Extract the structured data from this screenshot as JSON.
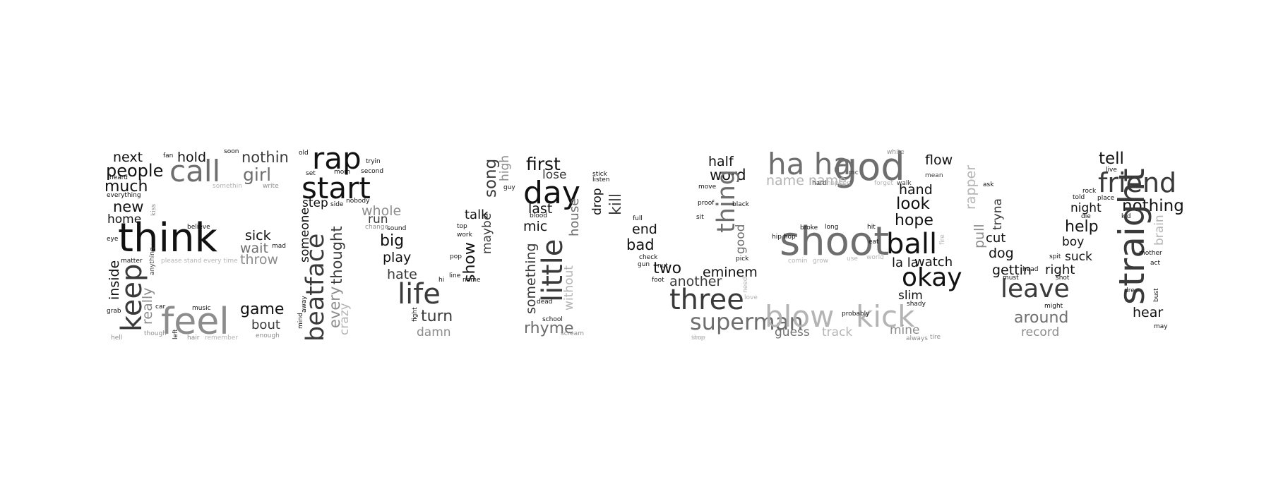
{
  "palette": {
    "black": "#111111",
    "dark": "#3a3a3a",
    "mid": "#6e6e6e",
    "gray": "#8c8c8c",
    "light": "#b4b4b4",
    "pale": "#cfcfcf"
  },
  "words": [
    "next",
    "fan",
    "hold",
    "soon",
    "nothin",
    "people",
    "call",
    "girl",
    "heard",
    "much",
    "somethin",
    "write",
    "everything",
    "new",
    "kiss",
    "home",
    "eye",
    "believe",
    "think",
    "sick",
    "keep",
    "inside",
    "matter",
    "anything",
    "wait",
    "mad",
    "please stand",
    "every time",
    "throw",
    "really",
    "grab",
    "car",
    "music",
    "feel",
    "game",
    "bout",
    "hell",
    "though",
    "left",
    "hair",
    "remember",
    "enough",
    "old",
    "rap",
    "tryin",
    "set",
    "mom",
    "second",
    "start",
    "step",
    "side",
    "nobody",
    "someone",
    "whole",
    "run",
    "change",
    "sound",
    "beatface",
    "thought",
    "every",
    "crazy",
    "big",
    "play",
    "hate",
    "life",
    "turn",
    "damn",
    "fight",
    "mind",
    "away",
    "high",
    "song",
    "guy",
    "talk",
    "top",
    "work",
    "maybe",
    "show",
    "pop",
    "line",
    "hi",
    "name",
    "first",
    "lose",
    "day",
    "last",
    "blood",
    "mic",
    "little",
    "house",
    "something",
    "dead",
    "without",
    "school",
    "rhyme",
    "scream",
    "stick",
    "listen",
    "drop",
    "kill",
    "full",
    "end",
    "bad",
    "check",
    "gun",
    "nut",
    "foot",
    "two",
    "half",
    "move",
    "word",
    "thing",
    "proof",
    "black",
    "sit",
    "good",
    "eminem",
    "pick",
    "another",
    "need",
    "three",
    "love",
    "superman",
    "stop",
    "time",
    "ha ha",
    "god",
    "white",
    "flow",
    "name name",
    "hard",
    "happen",
    "mc",
    "forget",
    "walk",
    "mean",
    "hand",
    "look",
    "hope",
    "shoot",
    "hip hop",
    "broke",
    "long",
    "hit",
    "fire",
    "ball",
    "eat",
    "la la",
    "watch",
    "comin",
    "grow",
    "use",
    "world",
    "okay",
    "slim",
    "shady",
    "blow",
    "kick",
    "probably",
    "guess",
    "track",
    "mine",
    "always",
    "tire",
    "rapper",
    "ask",
    "pull",
    "tryna",
    "cut",
    "dog",
    "gettin",
    "head",
    "must",
    "leave",
    "might",
    "around",
    "record",
    "tell",
    "live",
    "friend",
    "rock",
    "place",
    "told",
    "night",
    "nothing",
    "die",
    "kid",
    "help",
    "boy",
    "spit",
    "suck",
    "right",
    "shot",
    "straight",
    "brain",
    "mother",
    "act",
    "dre",
    "bust",
    "hear",
    "may"
  ]
}
